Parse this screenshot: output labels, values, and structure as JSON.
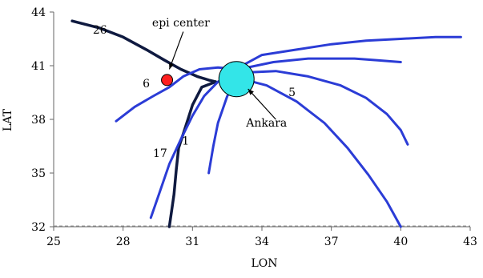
{
  "chart_data": {
    "type": "line",
    "title": "",
    "xlabel": "LON",
    "ylabel": "LAT",
    "xlim": [
      25,
      43
    ],
    "ylim": [
      32,
      44
    ],
    "xticks": [
      "25",
      "28",
      "31",
      "34",
      "37",
      "40",
      "43"
    ],
    "yticks": [
      "32",
      "35",
      "38",
      "41",
      "44"
    ],
    "grid": false,
    "legend": "none",
    "colors": {
      "blue_track": "#2b3cd6",
      "black_track": "#0f1a40",
      "epicenter": "#ff2020",
      "ankara": "#33e5e8"
    },
    "series": [
      {
        "name": "26",
        "color": "black",
        "x": [
          25.8,
          27.0,
          28.0,
          29.0,
          29.8,
          30.5,
          31.2,
          31.7,
          32.0
        ],
        "y": [
          43.5,
          43.1,
          42.6,
          41.9,
          41.3,
          40.8,
          40.4,
          40.2,
          40.1
        ]
      },
      {
        "name": "17",
        "color": "black",
        "x": [
          32.0,
          31.4,
          31.0,
          30.8,
          30.6,
          30.4,
          30.3,
          30.2,
          30.0
        ],
        "y": [
          40.1,
          39.8,
          38.8,
          38.0,
          37.2,
          36.4,
          35.2,
          33.8,
          32.0
        ]
      },
      {
        "name": "6",
        "color": "blue",
        "x": [
          27.7,
          28.5,
          29.3,
          30.0,
          30.6,
          31.3,
          32.1,
          33.0
        ],
        "y": [
          37.9,
          38.7,
          39.3,
          39.8,
          40.4,
          40.8,
          40.9,
          40.8
        ]
      },
      {
        "name": "1",
        "color": "blue",
        "x": [
          31.7,
          31.9,
          32.1,
          32.5,
          33.0
        ],
        "y": [
          35.0,
          36.5,
          37.8,
          39.3,
          40.3
        ]
      },
      {
        "name": "",
        "color": "blue",
        "x": [
          29.2,
          29.6,
          30.0,
          30.5,
          31.0,
          31.5,
          32.1,
          33.0
        ],
        "y": [
          32.5,
          34.0,
          35.5,
          36.9,
          38.2,
          39.3,
          40.1,
          40.7
        ]
      },
      {
        "name": "5",
        "color": "blue",
        "x": [
          33.0,
          34.2,
          35.5,
          36.7,
          37.7,
          38.6,
          39.4,
          40.0
        ],
        "y": [
          40.3,
          39.9,
          39.0,
          37.8,
          36.4,
          34.9,
          33.4,
          32.0
        ]
      },
      {
        "name": "",
        "color": "blue",
        "x": [
          33.0,
          34.6,
          36.0,
          37.4,
          38.5,
          39.4,
          40.0,
          40.3
        ],
        "y": [
          40.6,
          40.7,
          40.4,
          39.9,
          39.2,
          38.3,
          37.4,
          36.6
        ]
      },
      {
        "name": "",
        "color": "blue",
        "x": [
          33.0,
          34.5,
          36.0,
          37.0,
          38.0,
          39.0,
          40.0
        ],
        "y": [
          40.8,
          41.2,
          41.4,
          41.4,
          41.4,
          41.3,
          41.2
        ]
      },
      {
        "name": "",
        "color": "blue",
        "x": [
          33.0,
          34.0,
          35.5,
          37.0,
          38.5,
          40.0,
          41.5,
          42.6
        ],
        "y": [
          40.9,
          41.6,
          41.9,
          42.2,
          42.4,
          42.5,
          42.6,
          42.6
        ]
      }
    ],
    "points": [
      {
        "name": "epi center",
        "x": 29.9,
        "y": 40.2,
        "color": "red",
        "size": "small"
      },
      {
        "name": "Ankara",
        "x": 32.9,
        "y": 40.25,
        "color": "cyan",
        "size": "large"
      }
    ],
    "annotations": [
      {
        "text": "epi center",
        "x": 30.5,
        "y": 43.2
      },
      {
        "text": "Ankara",
        "x": 34.2,
        "y": 37.6
      },
      {
        "text": "26",
        "x": 27.0,
        "y": 42.8
      },
      {
        "text": "6",
        "x": 29.0,
        "y": 39.8
      },
      {
        "text": "5",
        "x": 35.3,
        "y": 39.3
      },
      {
        "text": "1",
        "x": 30.7,
        "y": 36.6
      },
      {
        "text": "17",
        "x": 29.6,
        "y": 35.9
      }
    ]
  }
}
